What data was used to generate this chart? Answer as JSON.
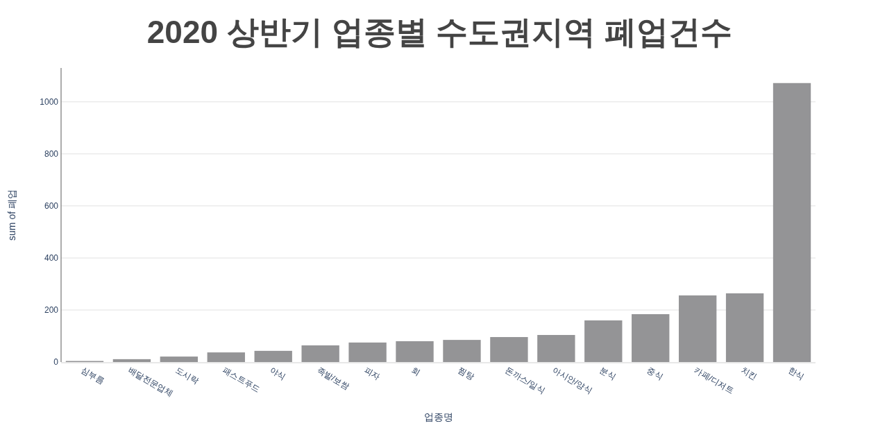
{
  "chart_data": {
    "type": "bar",
    "title": "2020 상반기 업종별 수도권지역 폐업건수",
    "xlabel": "업종명",
    "ylabel": "sum of 폐업",
    "categories": [
      "심부름",
      "배달전문업체",
      "도시락",
      "패스트푸드",
      "야식",
      "족발/보쌈",
      "피자",
      "회",
      "찜탕",
      "돈까스/일식",
      "아시안/양식",
      "분식",
      "중식",
      "카페/디저트",
      "치킨",
      "한식"
    ],
    "values": [
      4,
      11,
      21,
      37,
      43,
      64,
      75,
      80,
      85,
      96,
      104,
      160,
      184,
      256,
      264,
      1072
    ],
    "color": "#949496",
    "ylim": [
      0,
      1130
    ],
    "yticks": [
      0,
      200,
      400,
      600,
      800,
      1000
    ],
    "grid": "y"
  }
}
